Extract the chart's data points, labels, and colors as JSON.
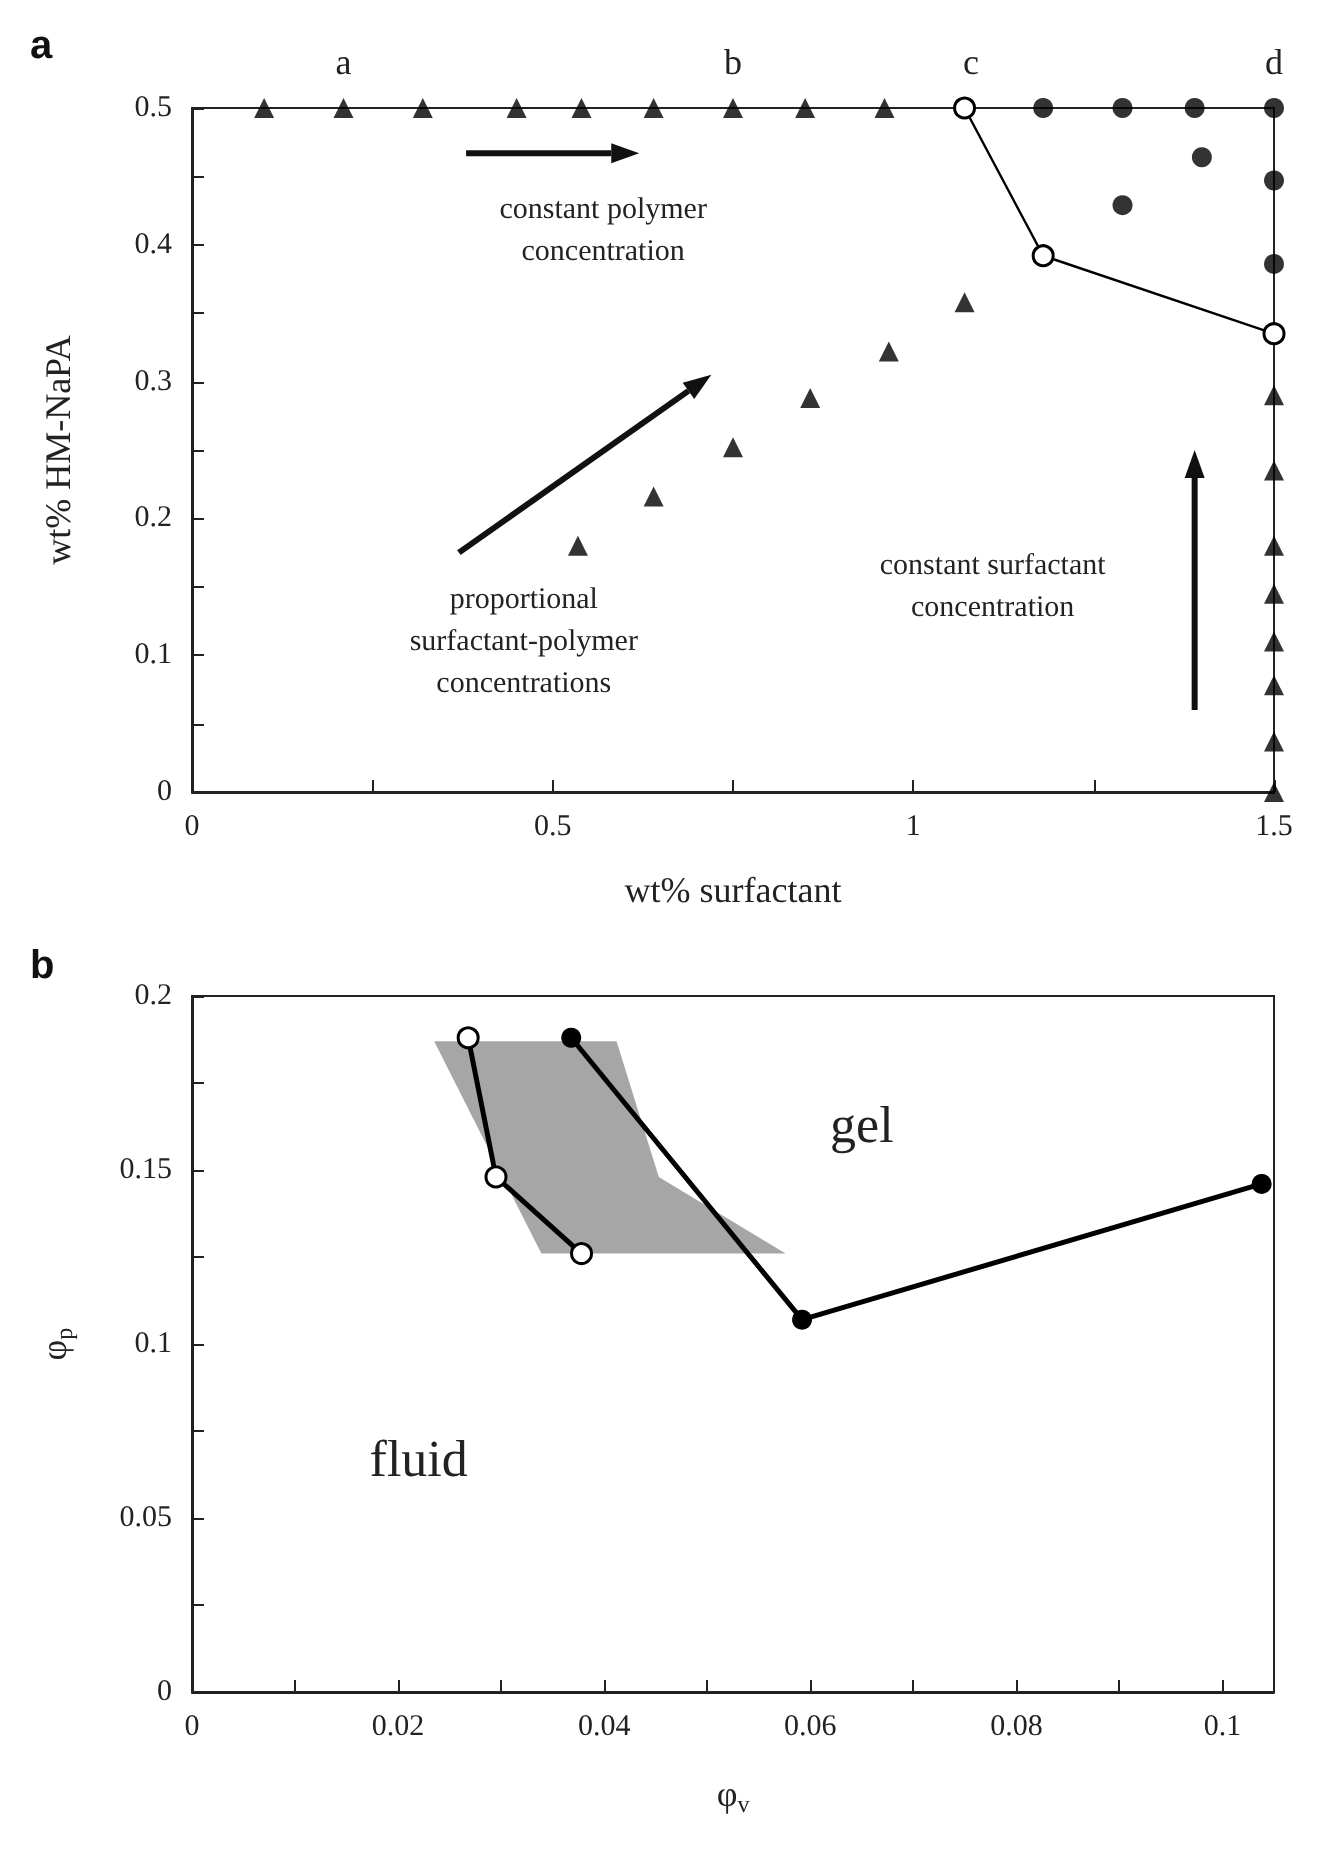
{
  "chart_data": [
    {
      "type": "scatter",
      "title": "a",
      "xlabel": "wt% surfactant",
      "ylabel": "wt% HM-NaPA",
      "xlim": [
        0,
        1.5
      ],
      "ylim": [
        0,
        0.5
      ],
      "xticks": [
        0,
        {
          "value": 0.25,
          "label": null
        },
        0.5,
        {
          "value": 0.75,
          "label": null
        },
        1,
        {
          "value": 1.25,
          "label": null
        },
        1.5
      ],
      "yticks": [
        0,
        {
          "value": 0.05,
          "label": null
        },
        0.1,
        {
          "value": 0.15,
          "label": null
        },
        0.2,
        {
          "value": 0.25,
          "label": null
        },
        0.3,
        {
          "value": 0.35,
          "label": null
        },
        0.4,
        {
          "value": 0.45,
          "label": null
        },
        0.5
      ],
      "grid": false,
      "series": [
        {
          "type": "scatter",
          "marker": "triangle",
          "color": "#000000",
          "x": [
            0.1,
            0.21,
            0.32,
            0.45,
            0.54,
            0.64,
            0.75,
            0.85,
            0.96,
            0.535,
            0.64,
            0.75,
            0.857,
            0.966,
            1.071,
            1.5,
            1.5,
            1.5,
            1.5,
            1.5,
            1.5,
            1.5,
            1.5
          ],
          "values": [
            0.5,
            0.5,
            0.5,
            0.5,
            0.5,
            0.5,
            0.5,
            0.5,
            0.5,
            0.18,
            0.216,
            0.252,
            0.288,
            0.322,
            0.358,
            0.29,
            0.235,
            0.18,
            0.145,
            0.11,
            0.078,
            0.037,
            0
          ]
        },
        {
          "type": "scatter",
          "marker": "circle",
          "color": "#000000",
          "x": [
            1.18,
            1.29,
            1.39,
            1.5,
            1.4,
            1.29,
            1.5,
            1.5
          ],
          "values": [
            0.5,
            0.5,
            0.5,
            0.5,
            0.464,
            0.429,
            0.447,
            0.386
          ]
        },
        {
          "type": "line",
          "marker": "circle",
          "line_style": "solid",
          "color": "#000000",
          "colors": [
            "#ffffff",
            "#ffffff",
            "#ffffff"
          ],
          "x": [
            1.071,
            1.18,
            1.5
          ],
          "values": [
            0.5,
            0.392,
            0.335
          ]
        }
      ],
      "annotations": [
        {
          "text": "a",
          "x": 0.21,
          "y": 0.5
        },
        {
          "text": "b",
          "x": 0.75,
          "y": 0.5
        },
        {
          "text": "c",
          "x": 1.08,
          "y": 0.5
        },
        {
          "text": "d",
          "x": 1.5,
          "y": 0.5
        },
        "constant polymer\nconcentration",
        "proportional\nsurfactant-polymer\nconcentrations",
        "constant surfactant\nconcentration"
      ]
    },
    {
      "type": "line",
      "title": "b",
      "xlabel": "φ$_{v}$",
      "ylabel": "φ$_{p}$",
      "xlim": [
        0,
        0.105
      ],
      "ylim": [
        0,
        0.2
      ],
      "xticks": [
        0,
        {
          "value": 0.01,
          "label": null
        },
        0.02,
        {
          "value": 0.03,
          "label": null
        },
        0.04,
        {
          "value": 0.05,
          "label": null
        },
        0.06,
        {
          "value": 0.07,
          "label": null
        },
        0.08,
        {
          "value": 0.09,
          "label": null
        },
        0.1
      ],
      "yticks": [
        0,
        {
          "value": 0.025,
          "label": null
        },
        0.05,
        {
          "value": 0.075,
          "label": null
        },
        0.1,
        {
          "value": 0.125,
          "label": null
        },
        0.15,
        {
          "value": 0.175,
          "label": null
        },
        0.2
      ],
      "grid": false,
      "series": [
        {
          "type": "area",
          "color": "#a6a6a6",
          "x": [
            0.0235,
            0.0412,
            0.0453,
            0.0576,
            0.0339
          ],
          "values": [
            0.187,
            0.187,
            0.148,
            0.126,
            0.126
          ]
        },
        {
          "type": "line",
          "marker": "circle",
          "line_style": "solid",
          "color": "#000000",
          "colors": [
            "#ffffff",
            "#ffffff",
            "#ffffff"
          ],
          "x": [
            0.0268,
            0.0295,
            0.0378
          ],
          "values": [
            0.188,
            0.148,
            0.126
          ]
        },
        {
          "type": "line",
          "marker": "circle",
          "line_style": "solid",
          "color": "#000000",
          "x": [
            0.0368,
            0.0592,
            0.1038
          ],
          "values": [
            0.188,
            0.107,
            0.146
          ]
        }
      ],
      "annotations": [
        "gel",
        "fluid"
      ]
    }
  ]
}
